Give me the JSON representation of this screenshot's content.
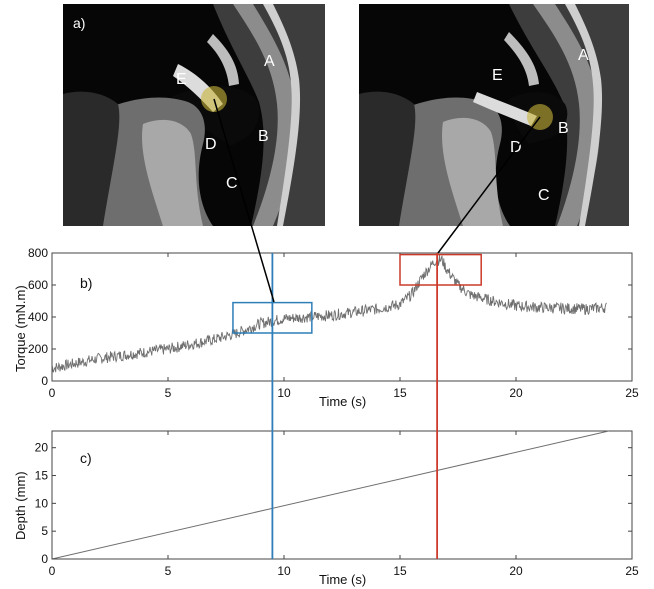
{
  "panels": {
    "a": "a)",
    "b": "b)",
    "c": "c)"
  },
  "ct_images": [
    {
      "letters": [
        "A",
        "B",
        "C",
        "D",
        "E"
      ],
      "highlight_color": "#c8b43a"
    },
    {
      "letters": [
        "A",
        "B",
        "C",
        "D",
        "E"
      ],
      "highlight_color": "#c8b43a"
    }
  ],
  "colors": {
    "trace": "#6f6f6f",
    "blue_marker": "#2e7eb8",
    "red_marker": "#cc3a2a",
    "connector": "#000000"
  },
  "chart_data": [
    {
      "type": "line",
      "panel": "b)",
      "title": "",
      "xlabel": "Time (s)",
      "ylabel": "Torque (mN.m)",
      "xlim": [
        0,
        25
      ],
      "ylim": [
        0,
        800
      ],
      "xticks": [
        0,
        5,
        10,
        15,
        20,
        25
      ],
      "yticks": [
        0,
        200,
        400,
        600,
        800
      ],
      "grid": false,
      "series": [
        {
          "x": [
            0,
            1,
            2,
            3,
            4,
            5,
            6,
            7,
            8,
            9,
            10,
            11,
            12,
            13,
            14,
            15,
            15.5,
            16,
            16.5,
            16.8,
            17,
            17.5,
            18,
            19,
            20,
            21,
            22,
            23,
            23.9
          ],
          "y": [
            80,
            110,
            140,
            160,
            180,
            200,
            230,
            260,
            300,
            360,
            390,
            400,
            410,
            430,
            450,
            480,
            540,
            660,
            750,
            760,
            700,
            600,
            540,
            500,
            470,
            460,
            455,
            450,
            460
          ]
        }
      ],
      "highlights": [
        {
          "x": [
            7.8,
            11.2
          ],
          "y": [
            300,
            490
          ],
          "color": "#2e7eb8"
        },
        {
          "x": [
            15.0,
            18.5
          ],
          "y": [
            600,
            790
          ],
          "color": "#cc3a2a"
        }
      ],
      "vlines": [
        {
          "x": 9.5,
          "color": "#2e7eb8"
        },
        {
          "x": 16.6,
          "color": "#cc3a2a"
        }
      ]
    },
    {
      "type": "line",
      "panel": "c)",
      "title": "",
      "xlabel": "Time (s)",
      "ylabel": "Depth (mm)",
      "xlim": [
        0,
        25
      ],
      "ylim": [
        0,
        23
      ],
      "xticks": [
        0,
        5,
        10,
        15,
        20,
        25
      ],
      "yticks": [
        0,
        5,
        10,
        15,
        20
      ],
      "grid": false,
      "series": [
        {
          "x": [
            0,
            24
          ],
          "y": [
            0,
            23
          ]
        }
      ],
      "vlines": [
        {
          "x": 9.5,
          "color": "#2e7eb8"
        },
        {
          "x": 16.6,
          "color": "#cc3a2a"
        }
      ]
    }
  ]
}
